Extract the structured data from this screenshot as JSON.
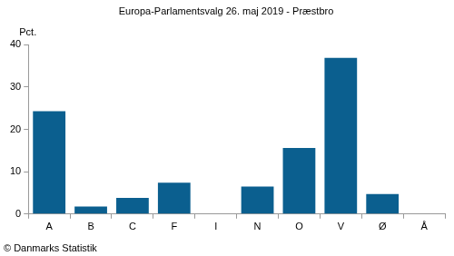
{
  "chart_data": {
    "type": "bar",
    "title": "Europa-Parlamentsvalg 26. maj 2019 - Præstbro",
    "y_label": "Pct.",
    "source": "© Danmarks Statistik",
    "categories": [
      "A",
      "B",
      "C",
      "F",
      "I",
      "N",
      "O",
      "V",
      "Ø",
      "Å"
    ],
    "values": [
      24.3,
      1.8,
      3.8,
      7.4,
      0,
      6.5,
      15.6,
      36.9,
      4.7,
      0
    ],
    "color": "#0b5f8f",
    "ylim": [
      0,
      40
    ],
    "yticks": [
      0,
      10,
      20,
      30,
      40
    ],
    "grid": false
  }
}
